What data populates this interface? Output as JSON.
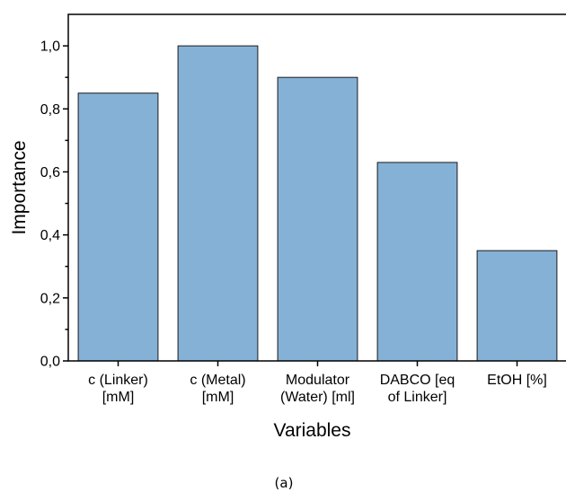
{
  "chart_data": {
    "type": "bar",
    "categories": [
      [
        "c (Linker)",
        "[mM]"
      ],
      [
        "c (Metal)",
        "[mM]"
      ],
      [
        "Modulator",
        "(Water) [ml]"
      ],
      [
        "DABCO [eq",
        "of Linker]"
      ],
      [
        "EtOH [%]"
      ]
    ],
    "values": [
      0.85,
      1.0,
      0.9,
      0.63,
      0.35
    ],
    "xlabel": "Variables",
    "ylabel": "Importance",
    "ylim": [
      0,
      1.1
    ],
    "yticks": [
      "0,0",
      "0,2",
      "0,4",
      "0,6",
      "0,8",
      "1,0"
    ],
    "bar_color": "#85b1d6",
    "bar_edge_color": "#1a1a1a",
    "grid": false
  },
  "caption": "(a)"
}
